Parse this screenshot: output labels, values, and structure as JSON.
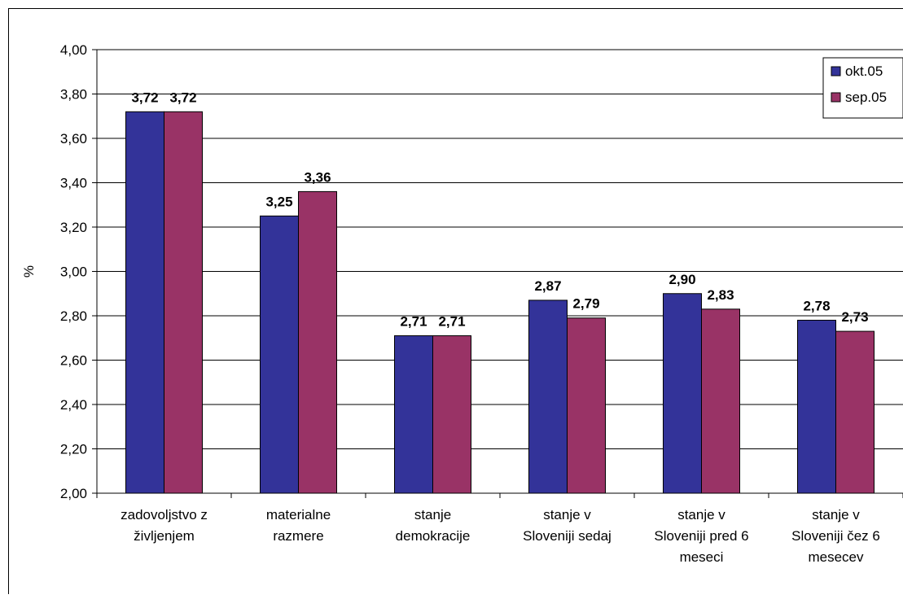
{
  "chart_data": {
    "type": "bar",
    "ylabel": "%",
    "ylim": [
      2.0,
      4.0
    ],
    "yticks": [
      "2,00",
      "2,20",
      "2,40",
      "2,60",
      "2,80",
      "3,00",
      "3,20",
      "3,40",
      "3,60",
      "3,80",
      "4,00"
    ],
    "ytick_values": [
      2.0,
      2.2,
      2.4,
      2.6,
      2.8,
      3.0,
      3.2,
      3.4,
      3.6,
      3.8,
      4.0
    ],
    "categories": [
      [
        "zadovoljstvo z",
        "življenjem"
      ],
      [
        "materialne",
        "razmere"
      ],
      [
        "stanje",
        "demokracije"
      ],
      [
        "stanje v",
        "Sloveniji sedaj"
      ],
      [
        "stanje v",
        "Sloveniji pred 6",
        "meseci"
      ],
      [
        "stanje v",
        "Sloveniji čez 6",
        "mesecev"
      ]
    ],
    "series": [
      {
        "name": "okt.05",
        "color": "#333399",
        "values": [
          3.72,
          3.25,
          2.71,
          2.87,
          2.9,
          2.78
        ],
        "labels": [
          "3,72",
          "3,25",
          "2,71",
          "2,87",
          "2,90",
          "2,78"
        ]
      },
      {
        "name": "sep.05",
        "color": "#993366",
        "values": [
          3.72,
          3.36,
          2.71,
          2.79,
          2.83,
          2.73
        ],
        "labels": [
          "3,72",
          "3,36",
          "2,71",
          "2,79",
          "2,83",
          "2,73"
        ]
      }
    ],
    "legend_position": "top-right",
    "grid": true
  }
}
